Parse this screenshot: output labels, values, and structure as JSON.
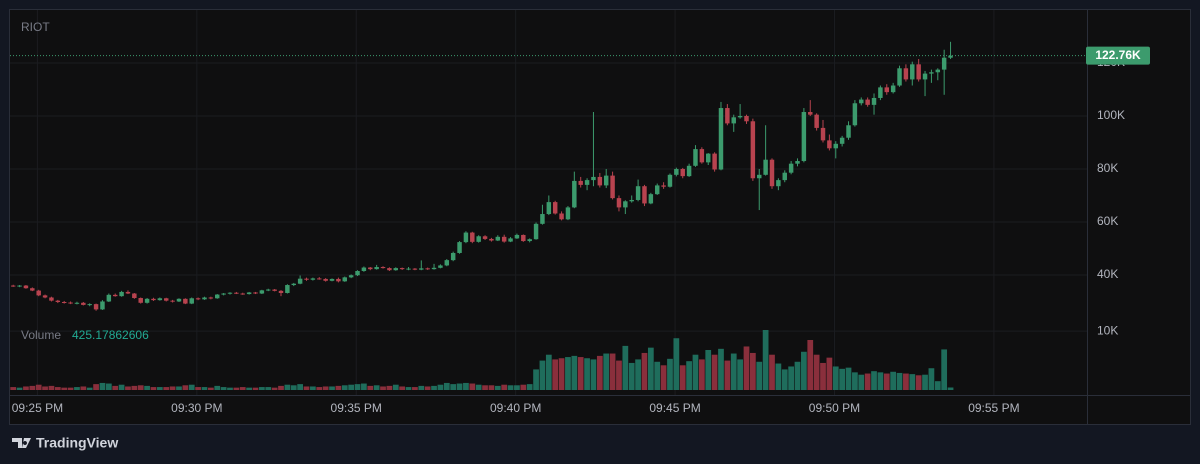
{
  "chart_data": {
    "type": "candlestick",
    "title": "RIOT",
    "volume_name": "Volume",
    "up_color": "#3c9b6d",
    "down_color": "#b8434f",
    "volume_up_color": "#1f6d5c",
    "volume_down_color": "#8a2f3c",
    "grid": true,
    "xlim": [
      -0.5,
      168.4
    ],
    "xticks": [
      {
        "value": 3.8,
        "label": "09:25 PM"
      },
      {
        "value": 28.8,
        "label": "09:30 PM"
      },
      {
        "value": 53.8,
        "label": "09:35 PM"
      },
      {
        "value": 78.8,
        "label": "09:40 PM"
      },
      {
        "value": 103.8,
        "label": "09:45 PM"
      },
      {
        "value": 128.8,
        "label": "09:50 PM"
      },
      {
        "value": 153.8,
        "label": "09:55 PM"
      }
    ],
    "ylim": [
      -5300,
      140000
    ],
    "yticks": [
      {
        "value": 40000,
        "label": "40K"
      },
      {
        "value": 60000,
        "label": "60K"
      },
      {
        "value": 80000,
        "label": "80K"
      },
      {
        "value": 100000,
        "label": "100K"
      },
      {
        "value": 120000,
        "label": "120K"
      }
    ],
    "volume_lim": [
      0,
      11900
    ],
    "volume_ticks": [
      {
        "value": 10000,
        "label": "10K"
      }
    ],
    "last_price_label": "122.76K",
    "open": [
      36000,
      35700,
      36000,
      35000,
      34100,
      32300,
      31500,
      30300,
      29800,
      29600,
      29300,
      29500,
      28700,
      29000,
      27000,
      30000,
      32500,
      32000,
      33600,
      33000,
      31300,
      29500,
      31000,
      30500,
      31200,
      30300,
      30000,
      31000,
      29200,
      31200,
      30800,
      31500,
      31200,
      32600,
      33000,
      33300,
      33000,
      32800,
      33400,
      33000,
      34200,
      34500,
      34000,
      33200,
      36200,
      36700,
      38600,
      38200,
      38700,
      38500,
      37800,
      38500,
      37600,
      39100,
      39900,
      41500,
      42800,
      42200,
      43000,
      42600,
      41800,
      42600,
      42200,
      42400,
      42000,
      42500,
      42200,
      42700,
      43600,
      45600,
      48300,
      52400,
      56000,
      52500,
      54600,
      53600,
      53000,
      54400,
      52600,
      53800,
      55100,
      52800,
      53500,
      59300,
      63000,
      67500,
      63200,
      61000,
      65500,
      75500,
      74000,
      75800,
      77000,
      73800,
      77500,
      69000,
      65500,
      67800,
      68300,
      73500,
      67000,
      70500,
      73800,
      73300,
      77800,
      80000,
      77300,
      81200,
      87500,
      82500,
      85800,
      79800,
      103000,
      97200,
      99500,
      100000,
      98000,
      76500,
      77800,
      83500,
      73500,
      75800,
      78600,
      82000,
      83000,
      101500,
      100500,
      95500,
      90800,
      87800,
      89500,
      91800,
      96500,
      104800,
      106200,
      104200,
      106800,
      110800,
      109000,
      111500,
      118000,
      113800,
      119500,
      113800,
      116000,
      116500,
      117500,
      122000
    ],
    "high": [
      36300,
      36200,
      36200,
      35300,
      34400,
      32600,
      31800,
      30600,
      30200,
      30000,
      29900,
      29800,
      29300,
      29200,
      30500,
      33000,
      33000,
      34000,
      34200,
      33200,
      31500,
      31300,
      31400,
      31500,
      31400,
      30600,
      31200,
      31200,
      31500,
      31500,
      31800,
      31800,
      32800,
      33200,
      33500,
      33600,
      33300,
      33600,
      33600,
      34400,
      34800,
      34700,
      34300,
      36500,
      37000,
      39800,
      39000,
      39000,
      39200,
      38800,
      38700,
      39000,
      39400,
      40200,
      41800,
      43200,
      43000,
      43800,
      43300,
      42900,
      42900,
      42800,
      43000,
      42600,
      45500,
      42800,
      44200,
      44000,
      46000,
      48800,
      52800,
      56500,
      56300,
      55000,
      55000,
      54000,
      55000,
      55200,
      54300,
      55600,
      55300,
      53800,
      59800,
      66500,
      70000,
      68000,
      64000,
      66000,
      79000,
      77000,
      76500,
      101500,
      78500,
      80000,
      79000,
      70000,
      68200,
      70000,
      76000,
      74000,
      71000,
      74500,
      75000,
      78300,
      80500,
      80400,
      82000,
      89000,
      88200,
      86000,
      86300,
      105300,
      104500,
      100500,
      104500,
      100500,
      99000,
      80000,
      96500,
      84000,
      76500,
      79500,
      83000,
      84000,
      103000,
      106000,
      101000,
      98500,
      93000,
      90500,
      92500,
      98000,
      106000,
      107000,
      107000,
      108500,
      111500,
      112000,
      112500,
      119000,
      119500,
      120500,
      121500,
      117000,
      117500,
      118000,
      125000,
      128000
    ],
    "low": [
      35500,
      35400,
      34800,
      33900,
      32000,
      31200,
      30000,
      29400,
      29200,
      29000,
      28900,
      28500,
      28200,
      26500,
      26800,
      29800,
      31800,
      31800,
      32800,
      31000,
      29200,
      29200,
      30200,
      30300,
      30000,
      29600,
      29800,
      29000,
      29000,
      30500,
      30600,
      30800,
      31000,
      32300,
      32600,
      32800,
      32500,
      32600,
      32800,
      32800,
      33900,
      33800,
      32000,
      33000,
      35800,
      36500,
      37800,
      37900,
      38200,
      37500,
      37600,
      37200,
      37400,
      38800,
      39600,
      41200,
      41800,
      42000,
      42400,
      41500,
      41600,
      41900,
      41800,
      41800,
      41800,
      41900,
      42000,
      42500,
      43300,
      45200,
      48000,
      52000,
      52000,
      52200,
      53200,
      52600,
      52800,
      52200,
      52400,
      53600,
      52500,
      52300,
      53300,
      59000,
      62600,
      62800,
      60600,
      60700,
      65200,
      73000,
      72000,
      73500,
      73000,
      72800,
      68500,
      64000,
      63000,
      67300,
      67800,
      66000,
      66700,
      70200,
      72500,
      73000,
      77200,
      76500,
      77000,
      80800,
      82000,
      81500,
      79000,
      79500,
      96500,
      94000,
      99000,
      97000,
      75500,
      64500,
      77500,
      72500,
      72000,
      75000,
      78000,
      81000,
      82500,
      100000,
      94500,
      90000,
      87000,
      84000,
      88500,
      91000,
      96000,
      104000,
      103500,
      100500,
      106000,
      108000,
      108500,
      111000,
      113000,
      111500,
      113000,
      107500,
      112500,
      113500,
      108000,
      121500
    ],
    "close": [
      35700,
      36000,
      35000,
      34100,
      32300,
      31500,
      30300,
      29800,
      29600,
      29300,
      29500,
      28700,
      29000,
      27000,
      30000,
      32500,
      32000,
      33600,
      33000,
      31300,
      29500,
      31000,
      30500,
      31200,
      30300,
      30000,
      31000,
      29200,
      31200,
      30800,
      31500,
      31200,
      32600,
      33000,
      33300,
      33000,
      32800,
      33400,
      33000,
      34200,
      34500,
      34000,
      33200,
      36200,
      36700,
      38600,
      38200,
      38700,
      38500,
      37800,
      38500,
      37600,
      39100,
      39900,
      41500,
      42800,
      42200,
      43000,
      42600,
      41800,
      42600,
      42200,
      42400,
      42000,
      42500,
      42200,
      42700,
      43600,
      45600,
      48300,
      52400,
      56000,
      52500,
      54600,
      53600,
      53000,
      54400,
      52600,
      53800,
      55100,
      52800,
      53500,
      59300,
      63000,
      67500,
      63200,
      61000,
      65500,
      75500,
      74000,
      75800,
      77000,
      73800,
      77500,
      69000,
      65500,
      67800,
      68300,
      73500,
      67000,
      70500,
      73800,
      73300,
      77800,
      80000,
      77300,
      81200,
      87500,
      82500,
      85800,
      79800,
      103000,
      97200,
      99500,
      100000,
      98000,
      76500,
      77800,
      83500,
      73500,
      75800,
      78600,
      82000,
      83000,
      101500,
      100500,
      95500,
      90800,
      87800,
      89500,
      91800,
      96500,
      104800,
      106200,
      104200,
      106800,
      110800,
      109000,
      111500,
      118000,
      113800,
      119500,
      113800,
      116000,
      116500,
      117500,
      122000,
      122760
    ],
    "volume": [
      500,
      400,
      600,
      700,
      900,
      600,
      700,
      500,
      400,
      400,
      500,
      600,
      400,
      1000,
      1200,
      1100,
      700,
      900,
      600,
      700,
      800,
      700,
      500,
      500,
      500,
      600,
      600,
      800,
      900,
      500,
      500,
      400,
      700,
      500,
      400,
      400,
      500,
      400,
      400,
      500,
      500,
      400,
      700,
      900,
      800,
      1000,
      600,
      600,
      500,
      600,
      600,
      700,
      800,
      900,
      1000,
      1100,
      700,
      800,
      600,
      700,
      900,
      600,
      500,
      500,
      700,
      600,
      700,
      900,
      1200,
      1000,
      1100,
      1200,
      1100,
      900,
      800,
      800,
      700,
      900,
      800,
      800,
      900,
      1000,
      3500,
      5000,
      6000,
      5200,
      5400,
      5600,
      5800,
      5600,
      5400,
      5200,
      5800,
      6200,
      6200,
      5000,
      7500,
      4600,
      5200,
      6300,
      7200,
      4800,
      4200,
      5300,
      8800,
      4200,
      4900,
      6000,
      5200,
      6800,
      6000,
      7000,
      5000,
      6200,
      5200,
      7400,
      6300,
      4800,
      10200,
      6000,
      4500,
      3500,
      4000,
      4800,
      6500,
      8500,
      6000,
      4600,
      5500,
      4000,
      3600,
      3800,
      3000,
      2600,
      2800,
      3200,
      3000,
      2800,
      3100,
      2900,
      2800,
      2700,
      2500,
      2600,
      3700,
      1500,
      6900,
      425.17862606
    ]
  }
}
